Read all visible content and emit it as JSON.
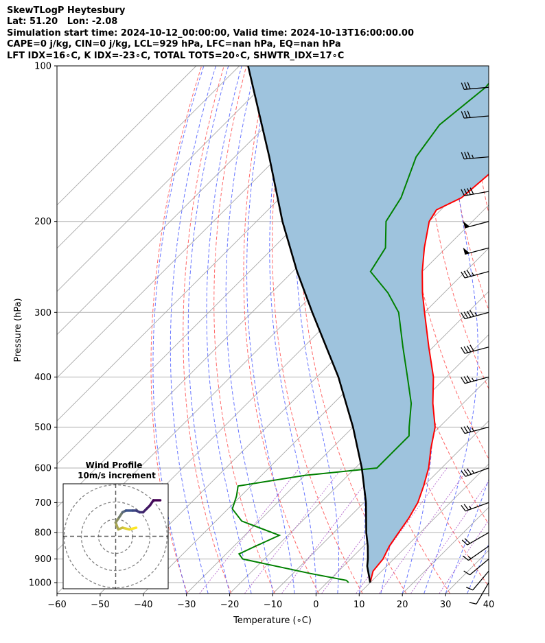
{
  "header": {
    "line1": "SkewTLogP Heytesbury",
    "line2": "Lat: 51.20   Lon: -2.08",
    "line3": "Simulation start time: 2024-10-12_00:00:00, Valid time: 2024-10-13T16:00:00.00",
    "line4": "CAPE=0 j/kg, CIN=0 j/kg, LCL=929 hPa, LFC=nan hPa, EQ=nan hPa",
    "line5": "LFT IDX=16∘C, K IDX=-23∘C, TOTAL TOTS=20∘C, SHWTR_IDX=17∘C"
  },
  "chart_data": [
    {
      "type": "line",
      "title": "",
      "xlabel": "Temperature (∘C)",
      "ylabel": "Pressure (hPa)",
      "y_scale": "log",
      "xlim": [
        -60,
        40
      ],
      "ylim": [
        1050,
        100
      ],
      "skew": "skew-T log-P, isotherms slanted 45°",
      "x_ticks": [
        "−60",
        "−50",
        "−40",
        "−30",
        "−20",
        "−10",
        "0",
        "10",
        "20",
        "30",
        "40"
      ],
      "x_tick_values": [
        -60,
        -50,
        -40,
        -30,
        -20,
        -10,
        0,
        10,
        20,
        30,
        40
      ],
      "y_ticks": [
        "100",
        "200",
        "300",
        "400",
        "500",
        "600",
        "700",
        "800",
        "900",
        "1000"
      ],
      "y_tick_values": [
        100,
        200,
        300,
        400,
        500,
        600,
        700,
        800,
        900,
        1000
      ],
      "grid": true,
      "series": [
        {
          "role": "temperature",
          "color": "#ff0000",
          "points": [
            [
              1000,
              10
            ],
            [
              950,
              8
            ],
            [
              900,
              7.5
            ],
            [
              850,
              6
            ],
            [
              800,
              5
            ],
            [
              750,
              4
            ],
            [
              700,
              2.5
            ],
            [
              650,
              0
            ],
            [
              600,
              -3
            ],
            [
              550,
              -7
            ],
            [
              500,
              -11
            ],
            [
              450,
              -17
            ],
            [
              400,
              -23
            ],
            [
              350,
              -31
            ],
            [
              300,
              -40
            ],
            [
              275,
              -45
            ],
            [
              250,
              -50
            ],
            [
              225,
              -55
            ],
            [
              200,
              -60
            ],
            [
              190,
              -61
            ],
            [
              180,
              -58
            ],
            [
              160,
              -57
            ],
            [
              140,
              -57
            ],
            [
              125,
              -55
            ],
            [
              110,
              -54
            ],
            [
              100,
              -55
            ]
          ]
        },
        {
          "role": "dewpoint",
          "color": "#008000",
          "points": [
            [
              1000,
              5
            ],
            [
              990,
              4
            ],
            [
              960,
              -6
            ],
            [
              900,
              -25
            ],
            [
              880,
              -27
            ],
            [
              850,
              -25
            ],
            [
              810,
              -22
            ],
            [
              760,
              -34
            ],
            [
              720,
              -39
            ],
            [
              680,
              -41
            ],
            [
              650,
              -43
            ],
            [
              620,
              -30
            ],
            [
              600,
              -15
            ],
            [
              560,
              -15
            ],
            [
              520,
              -15
            ],
            [
              500,
              -17
            ],
            [
              450,
              -22
            ],
            [
              400,
              -29
            ],
            [
              350,
              -37
            ],
            [
              300,
              -46
            ],
            [
              275,
              -53
            ],
            [
              250,
              -62
            ],
            [
              225,
              -64
            ],
            [
              200,
              -70
            ],
            [
              180,
              -72
            ],
            [
              150,
              -78
            ],
            [
              130,
              -80
            ],
            [
              110,
              -78
            ],
            [
              100,
              -79
            ]
          ]
        },
        {
          "role": "parcel",
          "color": "#000000",
          "points": [
            [
              1000,
              10
            ],
            [
              929,
              5.5
            ],
            [
              900,
              4
            ],
            [
              850,
              1
            ],
            [
              800,
              -2.5
            ],
            [
              700,
              -9.5
            ],
            [
              600,
              -18.5
            ],
            [
              500,
              -30
            ],
            [
              400,
              -45
            ],
            [
              300,
              -66
            ],
            [
              250,
              -79
            ],
            [
              200,
              -94
            ],
            [
              150,
              -112
            ],
            [
              100,
              -138
            ]
          ]
        }
      ],
      "shaded_region": "area between temperature and parcel profiles",
      "wind_barbs": [
        {
          "p": 1000,
          "speed_kt": 10,
          "dir_deg": 210
        },
        {
          "p": 950,
          "speed_kt": 10,
          "dir_deg": 220
        },
        {
          "p": 900,
          "speed_kt": 10,
          "dir_deg": 230
        },
        {
          "p": 850,
          "speed_kt": 15,
          "dir_deg": 235
        },
        {
          "p": 800,
          "speed_kt": 20,
          "dir_deg": 240
        },
        {
          "p": 700,
          "speed_kt": 25,
          "dir_deg": 250
        },
        {
          "p": 600,
          "speed_kt": 35,
          "dir_deg": 250
        },
        {
          "p": 500,
          "speed_kt": 35,
          "dir_deg": 255
        },
        {
          "p": 400,
          "speed_kt": 35,
          "dir_deg": 255
        },
        {
          "p": 350,
          "speed_kt": 40,
          "dir_deg": 255
        },
        {
          "p": 300,
          "speed_kt": 45,
          "dir_deg": 255
        },
        {
          "p": 250,
          "speed_kt": 35,
          "dir_deg": 255
        },
        {
          "p": 225,
          "speed_kt": 50,
          "dir_deg": 255
        },
        {
          "p": 200,
          "speed_kt": 50,
          "dir_deg": 255
        },
        {
          "p": 175,
          "speed_kt": 40,
          "dir_deg": 260
        },
        {
          "p": 150,
          "speed_kt": 35,
          "dir_deg": 265
        },
        {
          "p": 125,
          "speed_kt": 30,
          "dir_deg": 265
        },
        {
          "p": 110,
          "speed_kt": 30,
          "dir_deg": 265
        }
      ]
    },
    {
      "type": "line",
      "title": "Wind Profile",
      "subtitle": "10m/s increment",
      "rings": 3,
      "hodograph_uv": [
        [
          12,
          5
        ],
        [
          8,
          4
        ],
        [
          4,
          5
        ],
        [
          1.5,
          4
        ],
        [
          0,
          8
        ],
        [
          2,
          11
        ],
        [
          4,
          14
        ],
        [
          6,
          15
        ],
        [
          10,
          15
        ],
        [
          12,
          15
        ],
        [
          14,
          14
        ],
        [
          16,
          14
        ],
        [
          18,
          16
        ],
        [
          20,
          18
        ],
        [
          22,
          21
        ],
        [
          26,
          21
        ]
      ]
    }
  ]
}
